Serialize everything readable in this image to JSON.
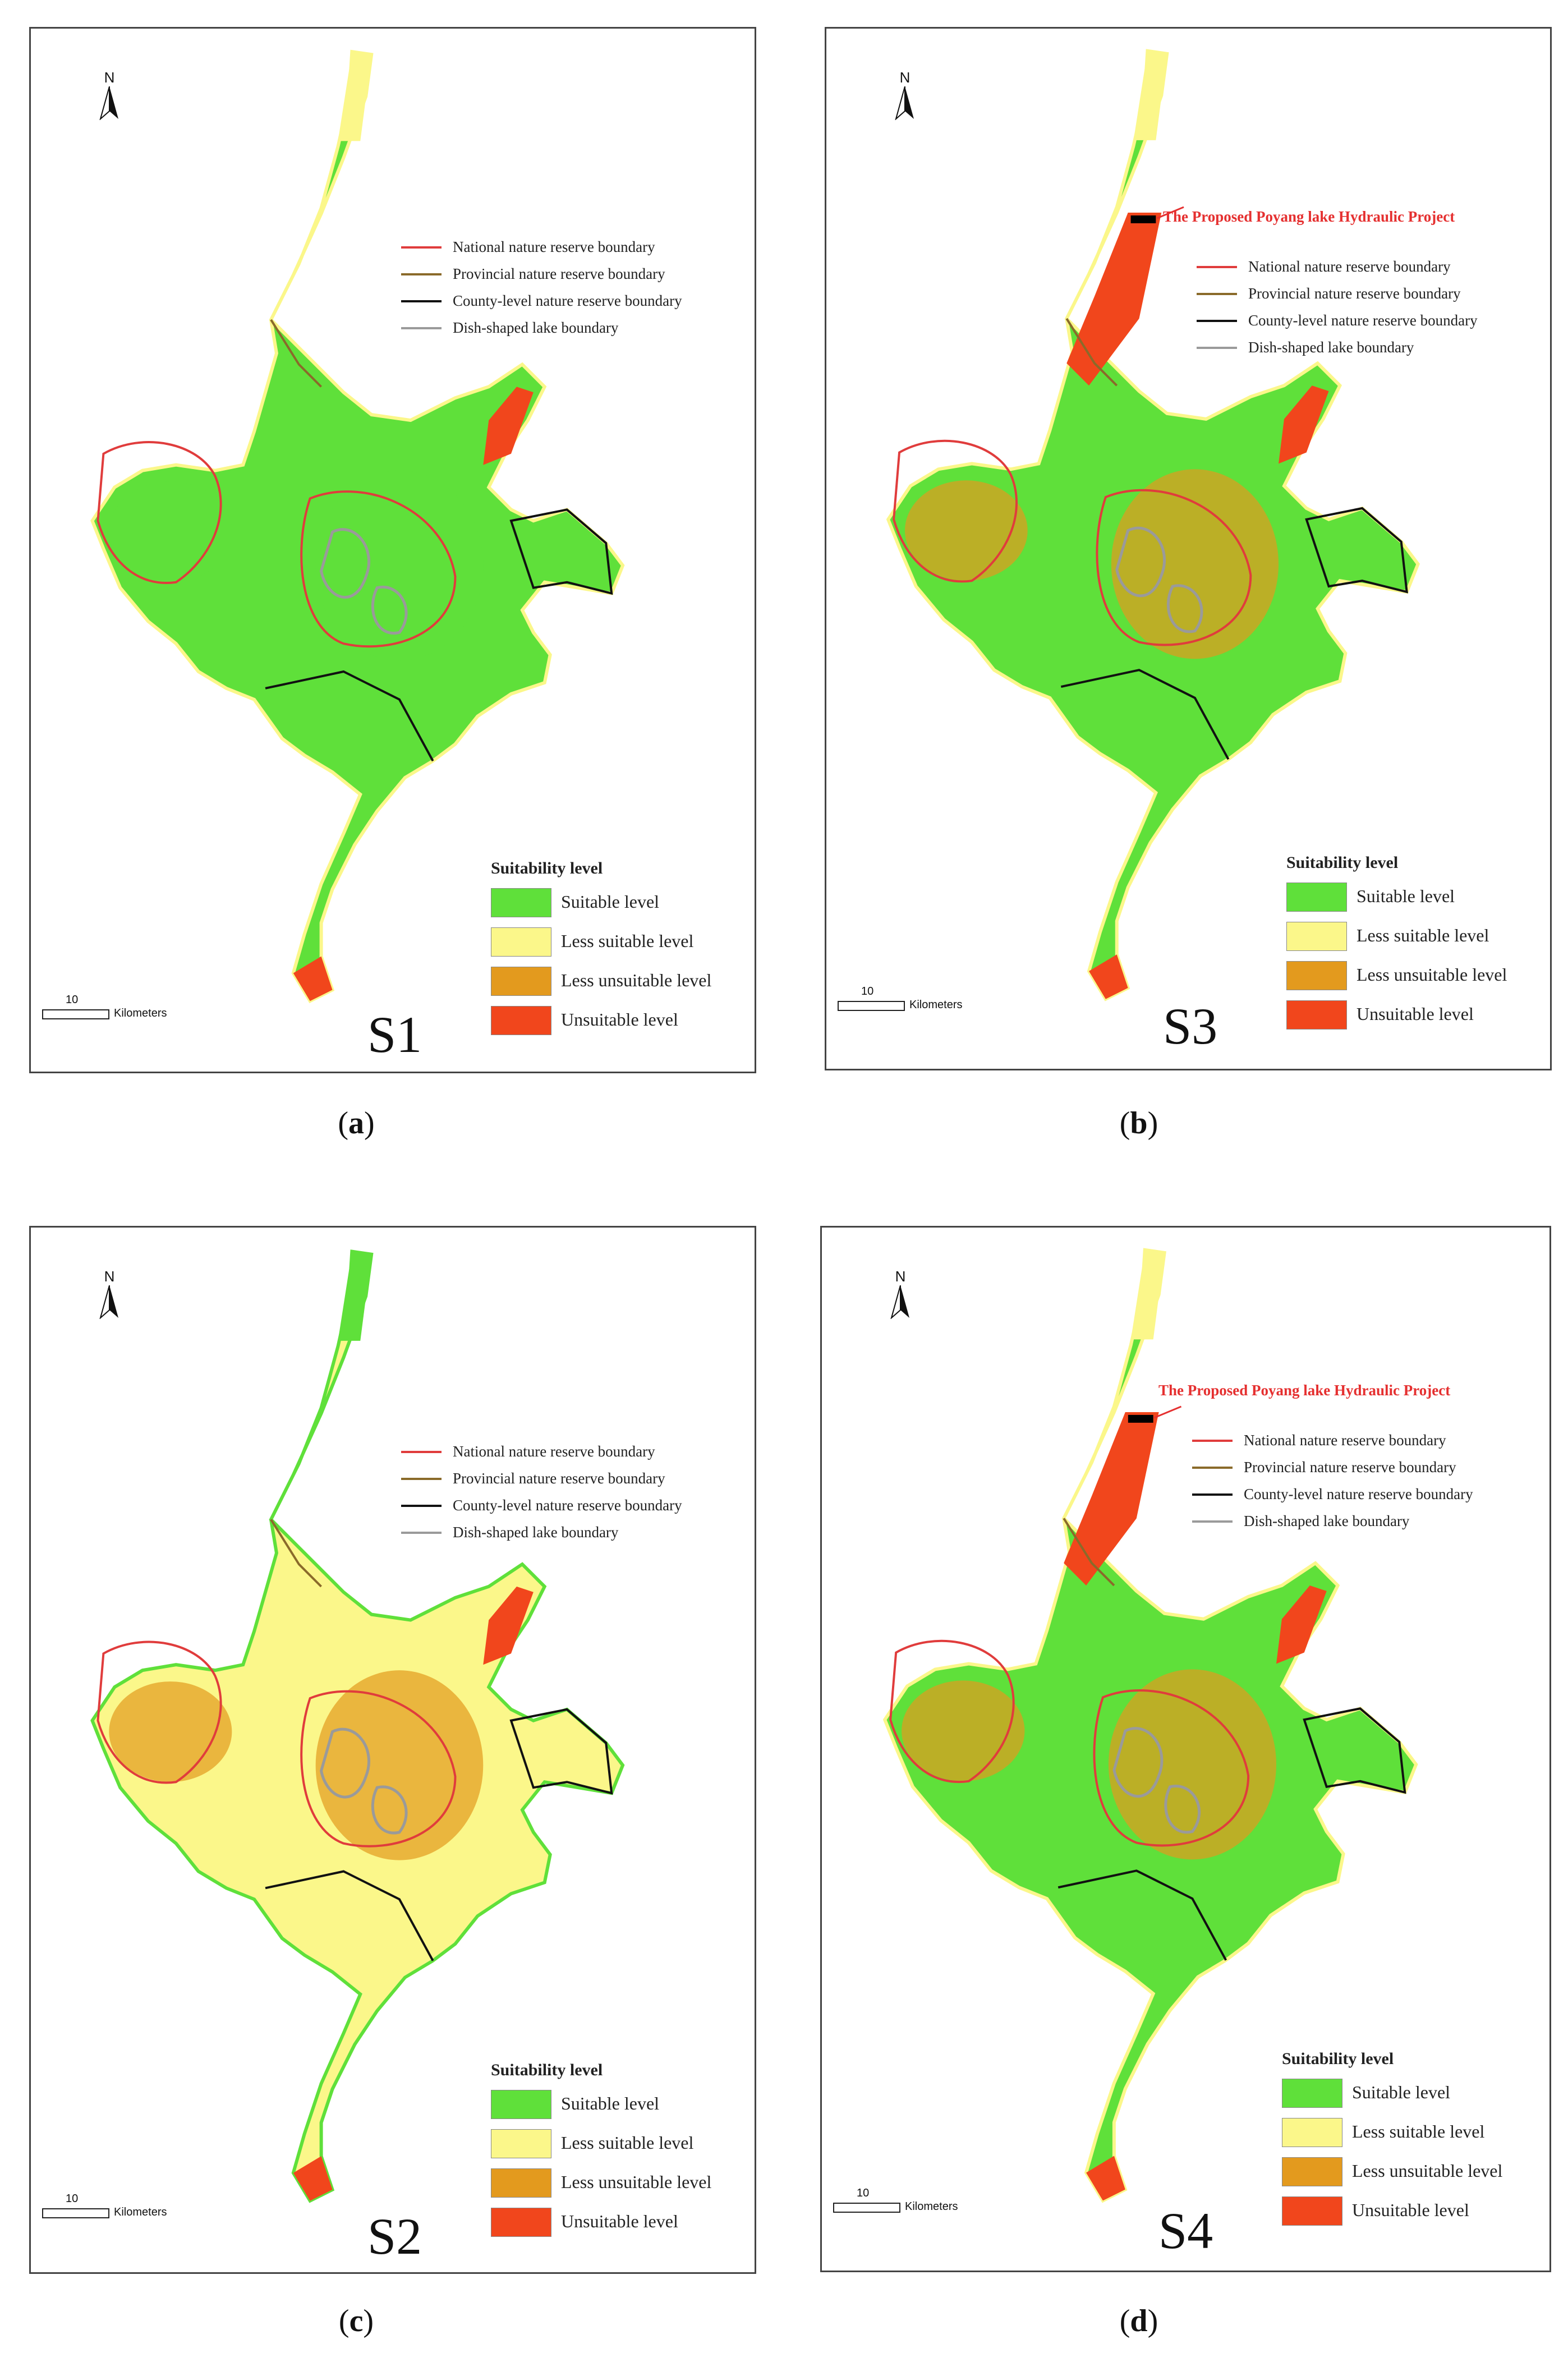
{
  "figure": {
    "panels": [
      {
        "id": "a",
        "scenario": "S1",
        "caption_letter": "a",
        "show_project_note": false
      },
      {
        "id": "b",
        "scenario": "S3",
        "caption_letter": "b",
        "show_project_note": true
      },
      {
        "id": "c",
        "scenario": "S2",
        "caption_letter": "c",
        "show_project_note": false
      },
      {
        "id": "d",
        "scenario": "S4",
        "caption_letter": "d",
        "show_project_note": true
      }
    ],
    "north_label": "N",
    "project_note": "The Proposed Poyang lake Hydraulic Project",
    "boundary_legend": [
      {
        "label": "National nature reserve boundary",
        "color": "#e03c3c"
      },
      {
        "label": "Provincial nature reserve boundary",
        "color": "#8a6a2a"
      },
      {
        "label": "County-level nature reserve boundary",
        "color": "#111111"
      },
      {
        "label": "Dish-shaped lake boundary",
        "color": "#9a9a9a"
      }
    ],
    "suitability_legend": {
      "title": "Suitability level",
      "items": [
        {
          "label": "Suitable level",
          "color": "#5fe03a"
        },
        {
          "label": "Less suitable level",
          "color": "#fbf78a"
        },
        {
          "label": "Less unsuitable level",
          "color": "#e39a1e"
        },
        {
          "label": "Unsuitable level",
          "color": "#f1461c"
        }
      ]
    },
    "scale_bar": {
      "value": "10",
      "unit": "Kilometers"
    }
  }
}
